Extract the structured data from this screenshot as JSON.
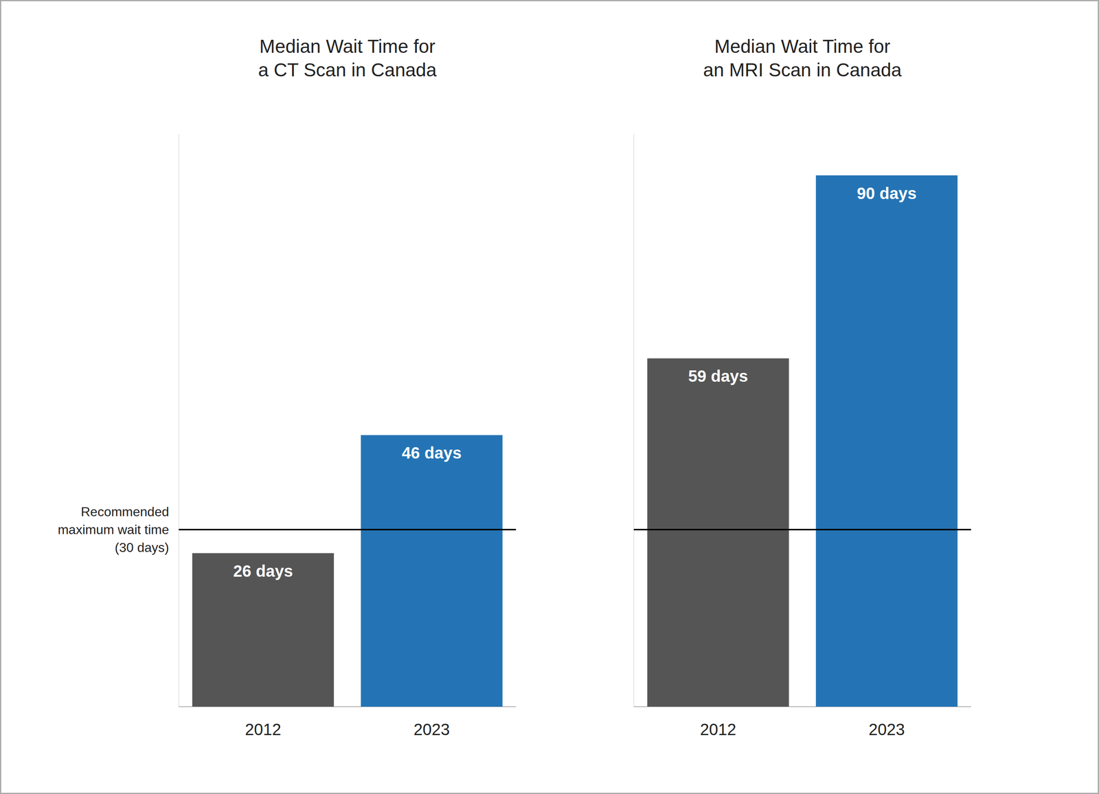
{
  "chart_data": [
    {
      "type": "bar",
      "title": "Median Wait Time for\na CT Scan in Canada",
      "categories": [
        "2012",
        "2023"
      ],
      "values": [
        26,
        46
      ],
      "value_labels": [
        "26 days",
        "46 days"
      ],
      "colors": [
        "#555555",
        "#2474B5"
      ],
      "ylim": [
        0,
        97
      ],
      "reference_line": 30,
      "reference_label": "Recommended\nmaximum wait time\n(30 days)",
      "data_labels": true,
      "tick_labels": "x",
      "grid": false
    },
    {
      "type": "bar",
      "title": "Median Wait Time for\nan MRI Scan in Canada",
      "categories": [
        "2012",
        "2023"
      ],
      "values": [
        59,
        90
      ],
      "value_labels": [
        "59 days",
        "90 days"
      ],
      "colors": [
        "#555555",
        "#2474B5"
      ],
      "ylim": [
        0,
        97
      ],
      "reference_line": 30,
      "data_labels": true,
      "tick_labels": "x",
      "grid": false
    }
  ]
}
